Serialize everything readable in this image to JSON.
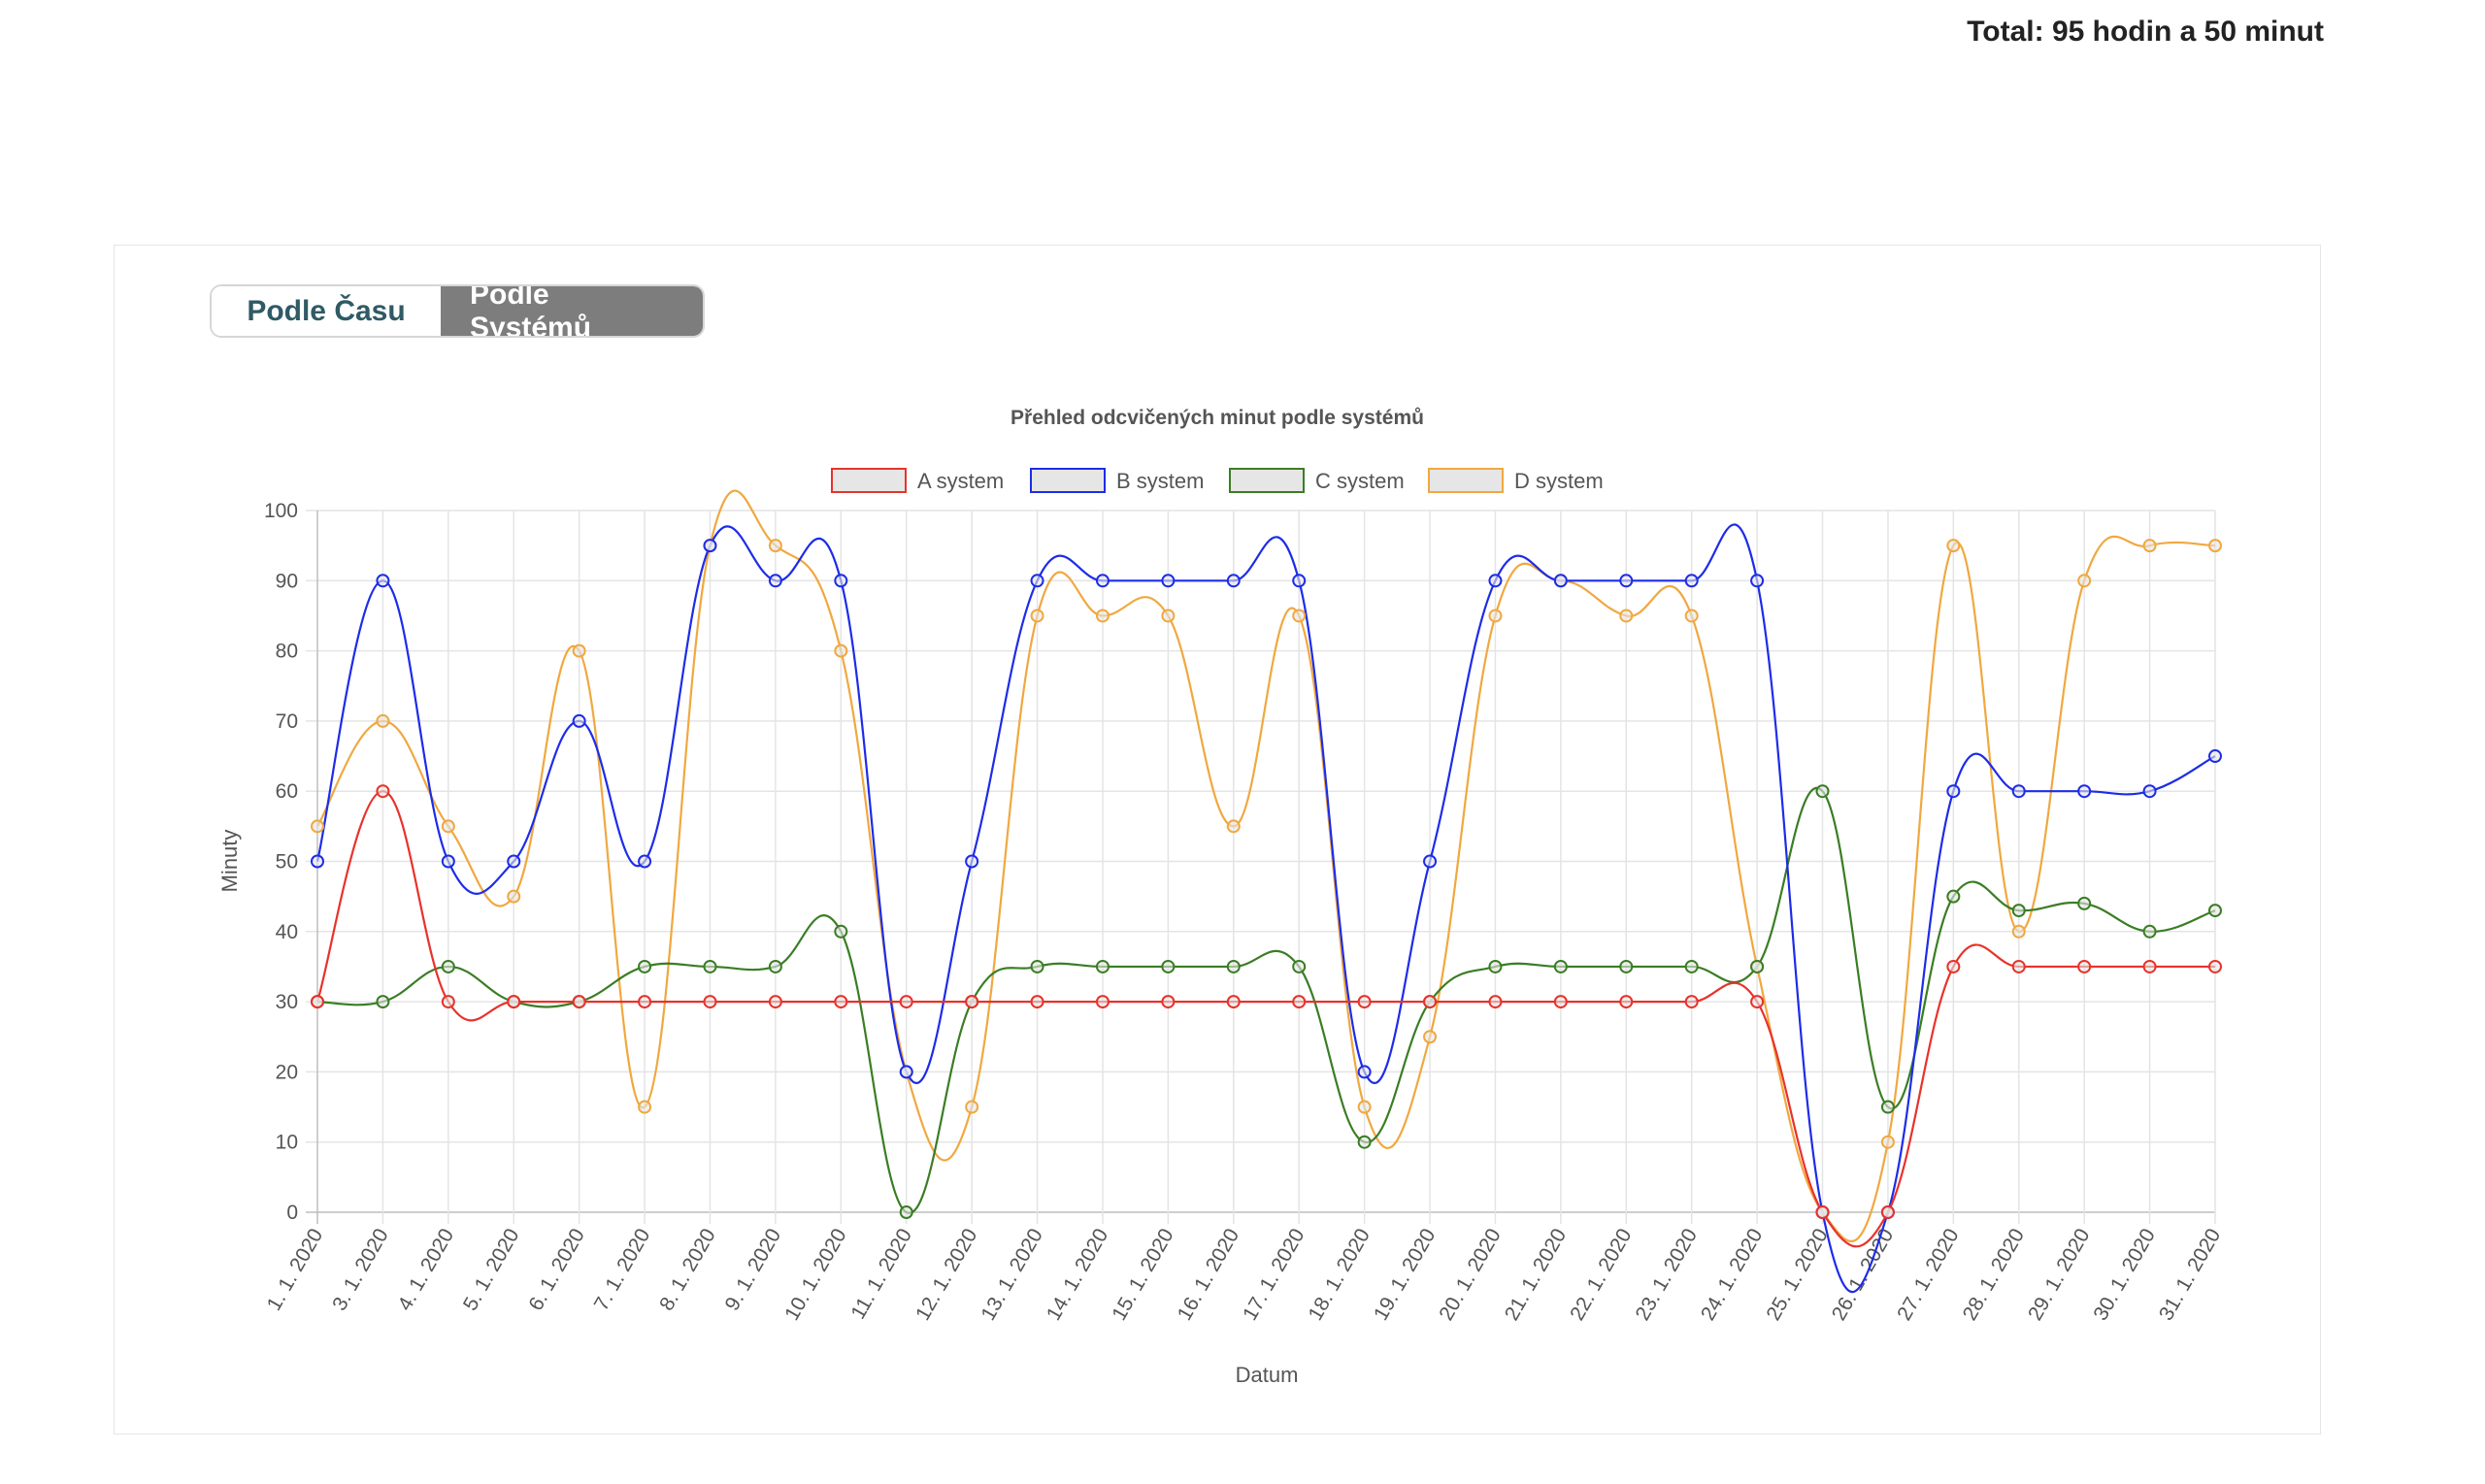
{
  "header": {
    "total": "Total: 95 hodin a 50 minut"
  },
  "toggle": {
    "time_label": "Podle Času",
    "systems_label": "Podle Systémů"
  },
  "chart_data": {
    "type": "line",
    "title": "Přehled odcvičených minut podle systémů",
    "xlabel": "Datum",
    "ylabel": "Minuty",
    "ylim": [
      0,
      100
    ],
    "yticks": [
      0,
      10,
      20,
      30,
      40,
      50,
      60,
      70,
      80,
      90,
      100
    ],
    "grid": true,
    "legend_position": "top",
    "categories": [
      "1. 1. 2020",
      "3. 1. 2020",
      "4. 1. 2020",
      "5. 1. 2020",
      "6. 1. 2020",
      "7. 1. 2020",
      "8. 1. 2020",
      "9. 1. 2020",
      "10. 1. 2020",
      "11. 1. 2020",
      "12. 1. 2020",
      "13. 1. 2020",
      "14. 1. 2020",
      "15. 1. 2020",
      "16. 1. 2020",
      "17. 1. 2020",
      "18. 1. 2020",
      "19. 1. 2020",
      "20. 1. 2020",
      "21. 1. 2020",
      "22. 1. 2020",
      "23. 1. 2020",
      "24. 1. 2020",
      "25. 1. 2020",
      "26. 1. 2020",
      "27. 1. 2020",
      "28. 1. 2020",
      "29. 1. 2020",
      "30. 1. 2020",
      "31. 1. 2020"
    ],
    "series": [
      {
        "name": "A system",
        "color": "#e8322b",
        "values": [
          30,
          60,
          30,
          30,
          30,
          30,
          30,
          30,
          30,
          30,
          30,
          30,
          30,
          30,
          30,
          30,
          30,
          30,
          30,
          30,
          30,
          30,
          30,
          0,
          0,
          35,
          35,
          35,
          35,
          35
        ]
      },
      {
        "name": "B system",
        "color": "#1d2ce8",
        "values": [
          50,
          90,
          50,
          50,
          70,
          50,
          95,
          90,
          90,
          20,
          50,
          90,
          90,
          90,
          90,
          90,
          20,
          50,
          90,
          90,
          90,
          90,
          90,
          0,
          0,
          60,
          60,
          60,
          60,
          65
        ]
      },
      {
        "name": "C system",
        "color": "#3a7d24",
        "values": [
          30,
          30,
          35,
          30,
          30,
          35,
          35,
          35,
          40,
          0,
          30,
          35,
          35,
          35,
          35,
          35,
          10,
          30,
          35,
          35,
          35,
          35,
          35,
          60,
          15,
          45,
          43,
          44,
          40,
          43
        ]
      },
      {
        "name": "D system",
        "color": "#f0a840",
        "values": [
          55,
          70,
          55,
          45,
          80,
          15,
          95,
          95,
          80,
          20,
          15,
          85,
          85,
          85,
          55,
          85,
          15,
          25,
          85,
          90,
          85,
          85,
          35,
          0,
          10,
          95,
          40,
          90,
          95,
          95
        ]
      }
    ]
  }
}
